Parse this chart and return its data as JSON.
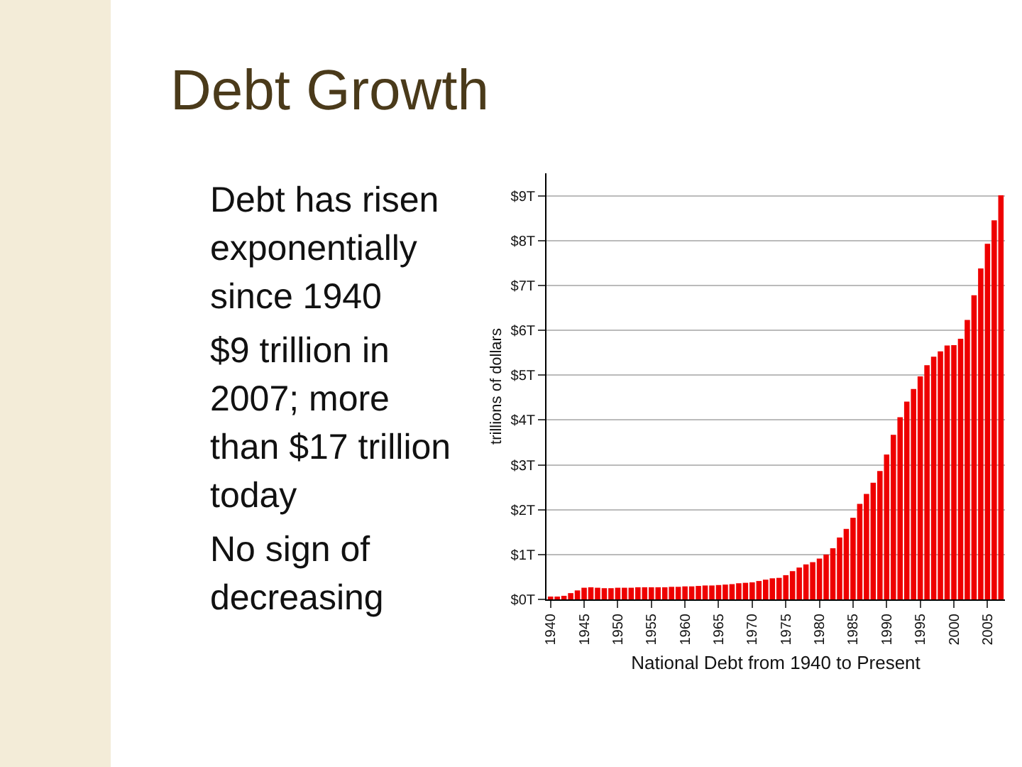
{
  "chart_data": {
    "type": "bar",
    "title": "Debt Growth",
    "xlabel": "National Debt from 1940 to Present",
    "ylabel": "trillions of dollars",
    "annotations": [
      "Debt has risen exponentially since 1940",
      "$9 trillion in 2007; more than $17 trillion today",
      "No sign of decreasing"
    ],
    "categories": [
      "1940",
      null,
      null,
      null,
      null,
      "1945",
      null,
      null,
      null,
      null,
      "1950",
      null,
      null,
      null,
      null,
      "1955",
      null,
      null,
      null,
      null,
      "1960",
      null,
      null,
      null,
      null,
      "1965",
      null,
      null,
      null,
      null,
      "1970",
      null,
      null,
      null,
      null,
      "1975",
      null,
      null,
      null,
      null,
      "1980",
      null,
      null,
      null,
      null,
      "1985",
      null,
      null,
      null,
      null,
      "1990",
      null,
      null,
      null,
      null,
      "1995",
      null,
      null,
      null,
      null,
      "2000",
      null,
      null,
      null,
      null,
      "2005",
      null,
      null
    ],
    "values": [
      0.05,
      0.06,
      0.08,
      0.14,
      0.2,
      0.26,
      0.27,
      0.26,
      0.25,
      0.25,
      0.26,
      0.26,
      0.26,
      0.27,
      0.27,
      0.27,
      0.27,
      0.27,
      0.28,
      0.28,
      0.29,
      0.29,
      0.3,
      0.31,
      0.31,
      0.32,
      0.33,
      0.34,
      0.36,
      0.37,
      0.38,
      0.41,
      0.44,
      0.47,
      0.48,
      0.54,
      0.63,
      0.71,
      0.78,
      0.83,
      0.91,
      1.0,
      1.14,
      1.38,
      1.57,
      1.82,
      2.13,
      2.35,
      2.6,
      2.86,
      3.23,
      3.67,
      4.06,
      4.41,
      4.69,
      4.97,
      5.22,
      5.41,
      5.53,
      5.66,
      5.67,
      5.81,
      6.23,
      6.78,
      7.38,
      7.93,
      8.45,
      9.01
    ],
    "color": "#ee0000",
    "ylim": [
      0,
      9.5
    ],
    "yticks": [
      {
        "value": 0,
        "label": "$0T"
      },
      {
        "value": 1,
        "label": "$1T"
      },
      {
        "value": 2,
        "label": "$2T"
      },
      {
        "value": 3,
        "label": "$3T"
      },
      {
        "value": 4,
        "label": "$4T"
      },
      {
        "value": 5,
        "label": "$5T"
      },
      {
        "value": 6,
        "label": "$6T"
      },
      {
        "value": 7,
        "label": "$7T"
      },
      {
        "value": 8,
        "label": "$8T"
      },
      {
        "value": 9,
        "label": "$9T"
      }
    ],
    "grid": "y"
  }
}
